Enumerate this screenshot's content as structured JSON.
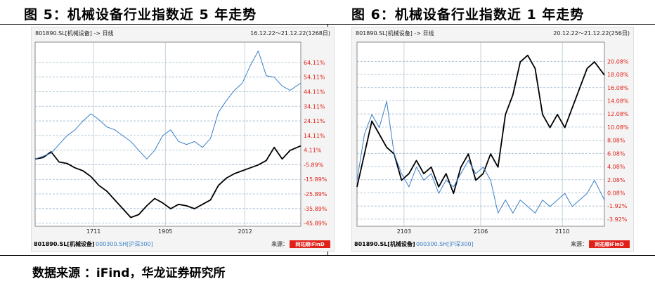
{
  "figure_left_title": "图 5：机械设备行业指数近 5 年走势",
  "figure_right_title": "图 6：机械设备行业指数近 1 年走势",
  "source_note": "数据来源 ：iFind，华龙证券研究所",
  "colors": {
    "industry_line": "#000000",
    "benchmark_line": "#3b7fc8",
    "label_red": "#e0221a",
    "panel_bg": "#f4f4f4",
    "plot_bg": "#ffffff",
    "grid": "#9fb8cc",
    "logo_bg": "#e0221a"
  },
  "chart_data": [
    {
      "type": "line",
      "header_left": "801890.SL[机械设备] -> 日线",
      "header_right": "16.12.22～21.12.22(1268日)",
      "y_tick_labels": [
        "64.11%",
        "54.11%",
        "44.11%",
        "34.11%",
        "24.11%",
        "14.11%",
        "4.11%",
        "-5.89%",
        "-15.89%",
        "-25.89%",
        "-35.89%",
        "-45.89%"
      ],
      "ylim": [
        -48,
        78
      ],
      "x_tick_labels": [
        "1711",
        "1905",
        "2012"
      ],
      "x_tick_positions": [
        0.22,
        0.49,
        0.79
      ],
      "legend": [
        {
          "name": "801890.SL[机械设备]",
          "color": "#000000"
        },
        {
          "name": "000300.SH[沪深300]",
          "color": "#3b7fc8"
        }
      ],
      "source_label": "来源：",
      "logo_text": "同花顺iFinD",
      "series": [
        {
          "name": "801890.SL[机械设备]",
          "color": "#000000",
          "x": [
            0.0,
            0.03,
            0.06,
            0.09,
            0.12,
            0.15,
            0.18,
            0.21,
            0.24,
            0.27,
            0.3,
            0.33,
            0.36,
            0.39,
            0.42,
            0.45,
            0.48,
            0.51,
            0.54,
            0.57,
            0.6,
            0.63,
            0.66,
            0.69,
            0.72,
            0.75,
            0.78,
            0.81,
            0.84,
            0.87,
            0.9,
            0.93,
            0.96,
            1.0
          ],
          "y": [
            -2,
            -1,
            3,
            -4,
            -5,
            -8,
            -10,
            -14,
            -20,
            -24,
            -30,
            -36,
            -42,
            -40,
            -34,
            -29,
            -32,
            -36,
            -33,
            -34,
            -36,
            -33,
            -30,
            -20,
            -15,
            -12,
            -10,
            -8,
            -6,
            -3,
            6,
            -2,
            4,
            7
          ]
        },
        {
          "name": "000300.SH[沪深300]",
          "color": "#3b7fc8",
          "x": [
            0.0,
            0.03,
            0.06,
            0.09,
            0.12,
            0.15,
            0.18,
            0.21,
            0.24,
            0.27,
            0.3,
            0.33,
            0.36,
            0.39,
            0.42,
            0.45,
            0.48,
            0.51,
            0.54,
            0.57,
            0.6,
            0.63,
            0.66,
            0.69,
            0.72,
            0.75,
            0.78,
            0.81,
            0.84,
            0.87,
            0.9,
            0.93,
            0.96,
            1.0
          ],
          "y": [
            -2,
            0,
            2,
            8,
            14,
            18,
            24,
            29,
            25,
            20,
            18,
            14,
            10,
            4,
            -2,
            4,
            14,
            18,
            10,
            8,
            10,
            6,
            12,
            30,
            38,
            45,
            50,
            62,
            72,
            55,
            54,
            48,
            45,
            50
          ]
        }
      ]
    },
    {
      "type": "line",
      "header_left": "801890.SL[机械设备] -> 日线",
      "header_right": "20.12.22～21.12.22(256日)",
      "y_tick_labels": [
        "20.08%",
        "18.08%",
        "16.08%",
        "14.08%",
        "12.08%",
        "10.08%",
        "8.08%",
        "6.08%",
        "4.08%",
        "2.08%",
        "0.08%",
        "-1.92%",
        "-3.92%"
      ],
      "ylim": [
        -5,
        23
      ],
      "x_tick_labels": [
        "2103",
        "2106",
        "2110"
      ],
      "x_tick_positions": [
        0.19,
        0.5,
        0.83
      ],
      "legend": [
        {
          "name": "801890.SL[机械设备]",
          "color": "#000000"
        },
        {
          "name": "000300.SH[沪深300]",
          "color": "#3b7fc8"
        }
      ],
      "source_label": "来源：",
      "logo_text": "同花顺iFinD",
      "series": [
        {
          "name": "801890.SL[机械设备]",
          "color": "#000000",
          "x": [
            0.0,
            0.03,
            0.06,
            0.09,
            0.12,
            0.15,
            0.18,
            0.21,
            0.24,
            0.27,
            0.3,
            0.33,
            0.36,
            0.39,
            0.42,
            0.45,
            0.48,
            0.51,
            0.54,
            0.57,
            0.6,
            0.63,
            0.66,
            0.69,
            0.72,
            0.75,
            0.78,
            0.81,
            0.84,
            0.87,
            0.9,
            0.93,
            0.96,
            1.0
          ],
          "y": [
            1,
            6,
            11,
            9,
            7,
            6,
            2,
            3,
            5,
            3,
            4,
            1,
            3,
            0,
            4,
            6,
            2,
            3,
            6,
            4,
            12,
            15,
            20,
            21,
            19,
            12,
            10,
            12,
            10,
            13,
            16,
            19,
            20,
            18
          ]
        },
        {
          "name": "000300.SH[沪深300]",
          "color": "#3b7fc8",
          "x": [
            0.0,
            0.03,
            0.06,
            0.09,
            0.12,
            0.15,
            0.18,
            0.21,
            0.24,
            0.27,
            0.3,
            0.33,
            0.36,
            0.39,
            0.42,
            0.45,
            0.48,
            0.51,
            0.54,
            0.57,
            0.6,
            0.63,
            0.66,
            0.69,
            0.72,
            0.75,
            0.78,
            0.81,
            0.84,
            0.87,
            0.9,
            0.93,
            0.96,
            1.0
          ],
          "y": [
            2,
            9,
            12,
            10,
            14,
            6,
            3,
            1,
            4,
            2,
            3,
            0,
            2,
            1,
            3,
            5,
            3,
            4,
            2,
            -3,
            -1,
            -3,
            -1,
            -2,
            -3,
            -1,
            -2,
            -1,
            0,
            -2,
            -1,
            0,
            2,
            -1
          ]
        }
      ]
    }
  ]
}
